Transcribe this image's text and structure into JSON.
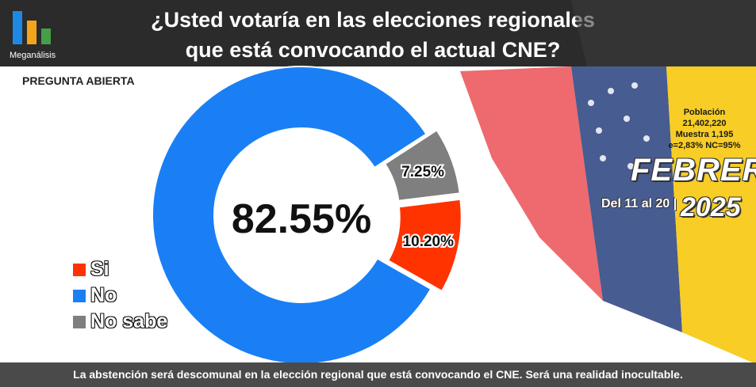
{
  "header": {
    "title_line1": "¿Usted votaría en las elecciones regionales",
    "title_line2": "que está convocando el actual CNE?",
    "logo_text": "Meganálisis",
    "logo_colors": [
      "#1e88e5",
      "#f2a51a",
      "#43a047"
    ]
  },
  "question_type": "PREGUNTA ABIERTA",
  "info": {
    "poblacion_label": "Población",
    "poblacion_value": "21,402,220",
    "muestra": "Muestra 1,195",
    "error": "e=2,83%  NC=95%"
  },
  "period": {
    "month": "FEBRERO",
    "range": "Del 11 al 20 |",
    "year": "2025"
  },
  "chart_data": {
    "type": "pie",
    "donut": true,
    "labels": [
      "Si",
      "No",
      "No sabe"
    ],
    "values": [
      10.2,
      82.55,
      7.25
    ],
    "value_labels": [
      "10.20%",
      "82.55%",
      "7.25%"
    ],
    "colors": [
      "#ff3300",
      "#1a7ff5",
      "#7f7f7f"
    ],
    "legend_position": "bottom-left"
  },
  "legend": [
    {
      "label": "Si",
      "color": "#ff3300"
    },
    {
      "label": "No",
      "color": "#1a7ff5"
    },
    {
      "label": "No sabe",
      "color": "#7f7f7f"
    }
  ],
  "footer": {
    "text": "La abstención será descomunal en la elección regional que está convocando el CNE. Será una realidad inocultable."
  }
}
